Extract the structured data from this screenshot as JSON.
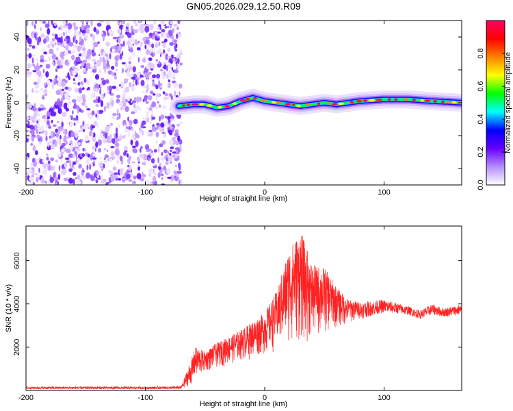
{
  "title": "GN05.2026.029.12.50.R09",
  "chart_data": [
    {
      "type": "heatmap",
      "title": "GN05.2026.029.12.50.R09",
      "xlabel": "Height of straight line (km)",
      "ylabel": "Frequency (Hz)",
      "xlim": [
        -200,
        165
      ],
      "ylim": [
        -50,
        50
      ],
      "xticks": [
        -200,
        -100,
        0,
        100
      ],
      "yticks": [
        -40,
        -20,
        0,
        20,
        40
      ],
      "colorbar": {
        "label": "Normalized spectral amplitude",
        "range": [
          0,
          1
        ],
        "ticks": [
          0.0,
          0.2,
          0.4,
          0.6,
          0.8
        ],
        "colors": [
          "#ffffff",
          "#b48cff",
          "#6600ff",
          "#0000ff",
          "#00ffff",
          "#00ff00",
          "#ffff00",
          "#ff8000",
          "#ff0000",
          "#ff0066"
        ]
      },
      "noise_region_x": [
        -200,
        -70
      ],
      "signal_ridge": {
        "x": [
          -72,
          -60,
          -50,
          -40,
          -30,
          -20,
          -10,
          0,
          10,
          20,
          30,
          40,
          50,
          60,
          70,
          80,
          100,
          120,
          140,
          165
        ],
        "y": [
          -2,
          -1,
          -1,
          -3,
          -2,
          1,
          3,
          1,
          0,
          -1,
          -2,
          -1,
          0,
          -1,
          0,
          1,
          2,
          2,
          1,
          0
        ]
      }
    },
    {
      "type": "line",
      "xlabel": "Height of straight line (km)",
      "ylabel": "SNR (10 * v/v)",
      "xlim": [
        -200,
        165
      ],
      "ylim": [
        0,
        7600
      ],
      "xticks": [
        -200,
        -100,
        0,
        100
      ],
      "yticks": [
        2000,
        4000,
        6000
      ],
      "color": "#ff2020",
      "envelope": {
        "x": [
          -200,
          -150,
          -100,
          -70,
          -58,
          -50,
          -40,
          -20,
          0,
          10,
          20,
          30,
          40,
          50,
          60,
          70,
          80,
          100,
          120,
          130,
          140,
          150,
          165
        ],
        "low": [
          60,
          60,
          60,
          60,
          400,
          800,
          1000,
          1300,
          1600,
          1800,
          2000,
          2000,
          2200,
          2500,
          2800,
          3000,
          3300,
          3600,
          3500,
          3300,
          3500,
          3400,
          3500
        ],
        "high": [
          180,
          180,
          180,
          200,
          2000,
          1800,
          2200,
          2800,
          3600,
          4600,
          6500,
          7400,
          5800,
          5700,
          4800,
          4200,
          4100,
          4200,
          3900,
          3700,
          4000,
          3800,
          4000
        ]
      }
    }
  ]
}
